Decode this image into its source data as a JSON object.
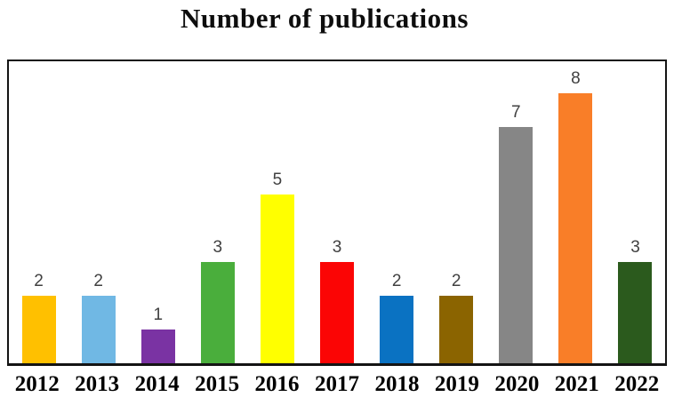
{
  "chart_data": {
    "type": "bar",
    "title": "Number of publications",
    "categories": [
      "2012",
      "2013",
      "2014",
      "2015",
      "2016",
      "2017",
      "2018",
      "2019",
      "2020",
      "2021",
      "2022"
    ],
    "values": [
      2,
      2,
      1,
      3,
      5,
      3,
      2,
      2,
      7,
      8,
      3
    ],
    "colors": [
      "#FFC000",
      "#70B8E4",
      "#7A33A3",
      "#4AAE3C",
      "#FFFF00",
      "#FB0505",
      "#0A72C2",
      "#8B6400",
      "#868686",
      "#F97E28",
      "#2B5A1D"
    ],
    "xlabel": "",
    "ylabel": "",
    "ylim": [
      0,
      9
    ],
    "grid": false,
    "legend": "none",
    "value_labels_shown": true,
    "frame_color": "#141414",
    "value_label_color": "#404040"
  }
}
